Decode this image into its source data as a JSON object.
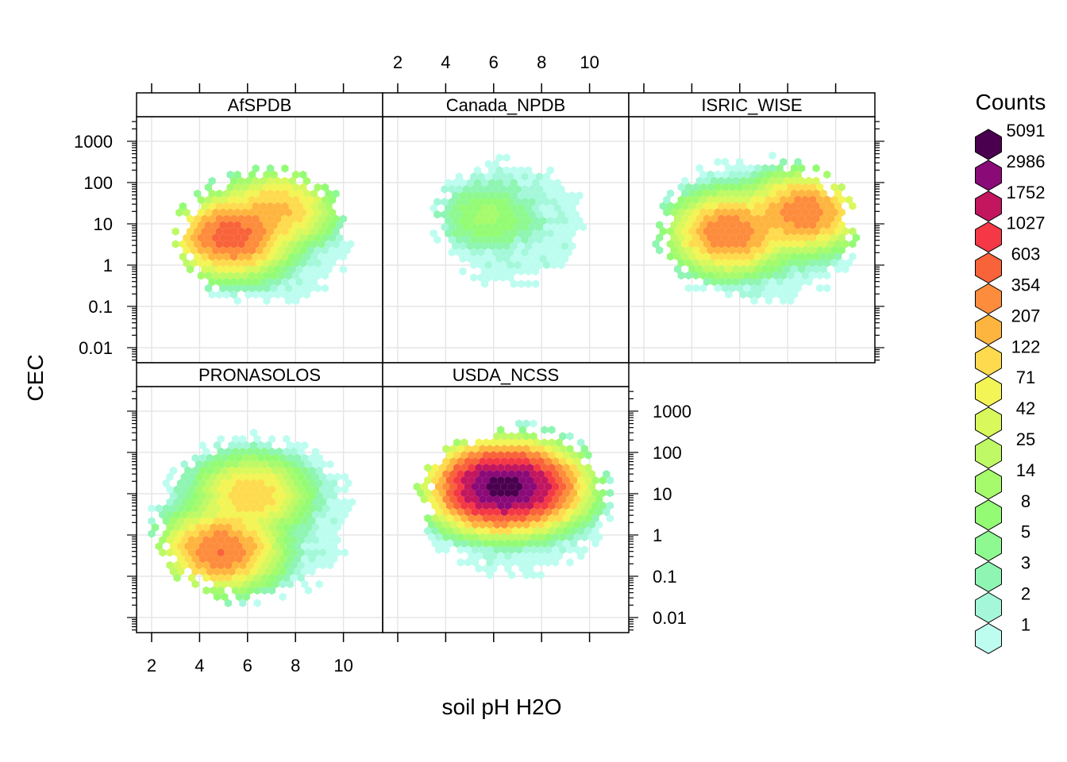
{
  "chart_data": {
    "type": "heatmap",
    "subtype": "hexbin-trellis",
    "xlabel": "soil pH H2O",
    "ylabel": "CEC",
    "x_ticks": [
      2,
      4,
      6,
      8,
      10
    ],
    "x_tick_labels": [
      "2",
      "4",
      "6",
      "8",
      "10"
    ],
    "xlim": [
      1.4,
      11.7
    ],
    "y_scale": "log10",
    "y_ticks": [
      0.01,
      0.1,
      1,
      10,
      100,
      1000
    ],
    "y_tick_labels": [
      "0.01",
      "0.1",
      "1",
      "10",
      "100",
      "1000"
    ],
    "ylim": [
      0.005,
      4000
    ],
    "grid": true,
    "legend": {
      "title": "Counts",
      "placement": "right",
      "labels": [
        "5091",
        "2986",
        "1752",
        "1027",
        "603",
        "354",
        "207",
        "122",
        "71",
        "42",
        "25",
        "14",
        "8",
        "5",
        "3",
        "2",
        "1"
      ],
      "colors": [
        "#4a004f",
        "#8a0a78",
        "#c2165f",
        "#f43845",
        "#f8633a",
        "#fd8c3c",
        "#feb53f",
        "#fedb4e",
        "#f3f455",
        "#d8f85c",
        "#bff966",
        "#a6fb6c",
        "#93fc74",
        "#8ef990",
        "#8ef5b2",
        "#a4f8d9",
        "#bdfdf0"
      ]
    },
    "panels": [
      {
        "name": "AfSPDB",
        "x_range": [
          3.0,
          10.5
        ],
        "y_range": [
          0.1,
          220
        ],
        "hotspots": [
          {
            "x": 5.2,
            "y": 5,
            "count": 900
          },
          {
            "x": 7.3,
            "y": 25,
            "count": 250
          }
        ]
      },
      {
        "name": "Canada_NPDB",
        "x_range": [
          3.5,
          9.8
        ],
        "y_range": [
          0.3,
          400
        ],
        "hotspots": [
          {
            "x": 5.6,
            "y": 15,
            "count": 15
          }
        ]
      },
      {
        "name": "ISRIC_WISE",
        "x_range": [
          2.5,
          11.0
        ],
        "y_range": [
          0.1,
          450
        ],
        "hotspots": [
          {
            "x": 5.5,
            "y": 6,
            "count": 600
          },
          {
            "x": 8.8,
            "y": 20,
            "count": 600
          }
        ]
      },
      {
        "name": "PRONASOLOS",
        "x_range": [
          2.0,
          10.5
        ],
        "y_range": [
          0.02,
          300
        ],
        "hotspots": [
          {
            "x": 4.8,
            "y": 0.4,
            "count": 700
          },
          {
            "x": 6.2,
            "y": 10,
            "count": 200
          }
        ]
      },
      {
        "name": "USDA_NCSS",
        "x_range": [
          2.8,
          11.0
        ],
        "y_range": [
          0.1,
          500
        ],
        "hotspots": [
          {
            "x": 6.0,
            "y": 15,
            "count": 5091
          },
          {
            "x": 7.3,
            "y": 15,
            "count": 2500
          }
        ]
      }
    ]
  }
}
